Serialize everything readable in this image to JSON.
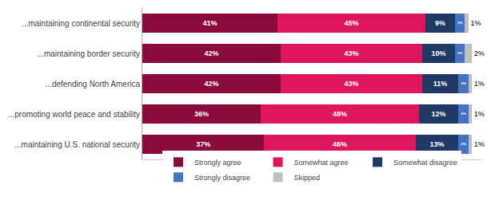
{
  "chart_data": {
    "type": "bar",
    "orientation": "horizontal",
    "stacked": true,
    "data_labels": true,
    "categories": [
      "...maintaining continental security",
      "...maintaining border security",
      "...defending North America",
      "...promoting world peace and stability",
      "...maintaining U.S. national security"
    ],
    "series": [
      {
        "name": "Strongly agree",
        "color": "#8B0A3D",
        "values": [
          41,
          42,
          42,
          36,
          37
        ],
        "value_labels": [
          "41%",
          "42%",
          "42%",
          "36%",
          "37%"
        ]
      },
      {
        "name": "Somewhat agree",
        "color": "#E0165C",
        "values": [
          45,
          43,
          43,
          48,
          46
        ],
        "value_labels": [
          "45%",
          "43%",
          "43%",
          "48%",
          "46%"
        ]
      },
      {
        "name": "Somewhat disagree",
        "color": "#1F3864",
        "values": [
          9,
          10,
          11,
          12,
          13
        ],
        "value_labels": [
          "9%",
          "10%",
          "11%",
          "12%",
          "13%"
        ]
      },
      {
        "name": "Strongly disagree",
        "color": "#4472C4",
        "values": [
          3,
          3,
          3,
          3,
          3
        ],
        "value_labels": [
          "3%",
          "3%",
          "3%",
          "3%",
          "3%"
        ]
      },
      {
        "name": "Skipped",
        "color": "#BFBFBF",
        "values": [
          1,
          2,
          1,
          1,
          1
        ],
        "value_labels": [
          "1%",
          "2%",
          "1%",
          "1%",
          "1%"
        ]
      }
    ],
    "xlim": [
      0,
      103
    ],
    "tick_labels": "y",
    "grid": false,
    "legend": "bottom"
  }
}
